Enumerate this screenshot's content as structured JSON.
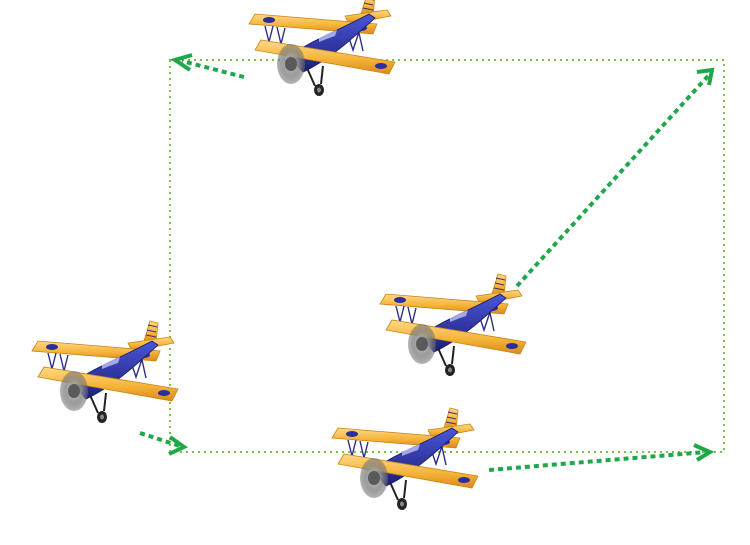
{
  "diagram": {
    "planes": [
      {
        "id": "top"
      },
      {
        "id": "left"
      },
      {
        "id": "center"
      },
      {
        "id": "bottom"
      }
    ],
    "colors": {
      "path": "#7cc24a",
      "arrow": "#1fa84a",
      "wing": "#f5b53a",
      "wing_highlight": "#ffd889",
      "wing_shadow": "#d98a1a",
      "fuselage": "#2b2f9e",
      "fuselage_highlight": "#4a56d6",
      "strut": "#2a2f85",
      "propeller": "#8a8a8a",
      "tire": "#222222"
    }
  }
}
